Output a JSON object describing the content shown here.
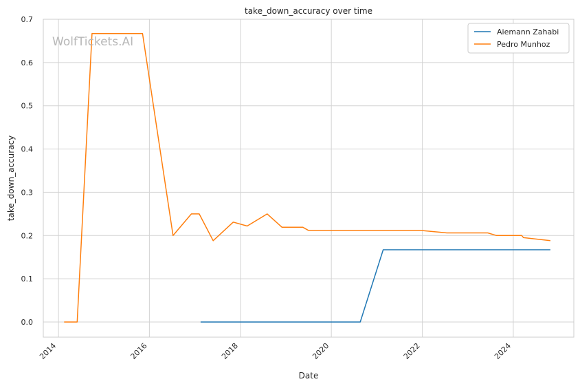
{
  "chart_data": {
    "type": "line",
    "title": "take_down_accuracy over time",
    "xlabel": "Date",
    "ylabel": "take_down_accuracy",
    "watermark": "WolfTickets.AI",
    "xlim": [
      "2013-09-01",
      "2025-05-01"
    ],
    "ylim": [
      -0.035,
      0.7
    ],
    "x_ticks": [
      "2014",
      "2016",
      "2018",
      "2020",
      "2022",
      "2024"
    ],
    "y_ticks": [
      "0.0",
      "0.1",
      "0.2",
      "0.3",
      "0.4",
      "0.5",
      "0.6",
      "0.7"
    ],
    "grid": true,
    "legend_position": "top-right",
    "series": [
      {
        "name": "Aiemann Zahabi",
        "color": "#1f77b4",
        "points": [
          [
            "2017-02-15",
            0.0
          ],
          [
            "2020-08-20",
            0.0
          ],
          [
            "2021-02-20",
            0.167
          ],
          [
            "2024-10-25",
            0.167
          ]
        ]
      },
      {
        "name": "Pedro Munhoz",
        "color": "#ff7f0e",
        "points": [
          [
            "2014-02-15",
            0.0
          ],
          [
            "2014-05-31",
            0.0
          ],
          [
            "2014-09-27",
            0.667
          ],
          [
            "2015-11-07",
            0.667
          ],
          [
            "2016-07-09",
            0.2
          ],
          [
            "2016-12-03",
            0.25
          ],
          [
            "2017-02-04",
            0.25
          ],
          [
            "2017-05-27",
            0.188
          ],
          [
            "2017-11-04",
            0.231
          ],
          [
            "2018-02-24",
            0.222
          ],
          [
            "2018-08-04",
            0.25
          ],
          [
            "2018-12-01",
            0.219
          ],
          [
            "2019-05-18",
            0.219
          ],
          [
            "2019-06-29",
            0.212
          ],
          [
            "2021-12-11",
            0.212
          ],
          [
            "2022-07-16",
            0.206
          ],
          [
            "2023-06-10",
            0.206
          ],
          [
            "2023-08-19",
            0.2
          ],
          [
            "2024-03-09",
            0.2
          ],
          [
            "2024-03-23",
            0.195
          ],
          [
            "2024-10-25",
            0.188
          ]
        ]
      }
    ]
  }
}
